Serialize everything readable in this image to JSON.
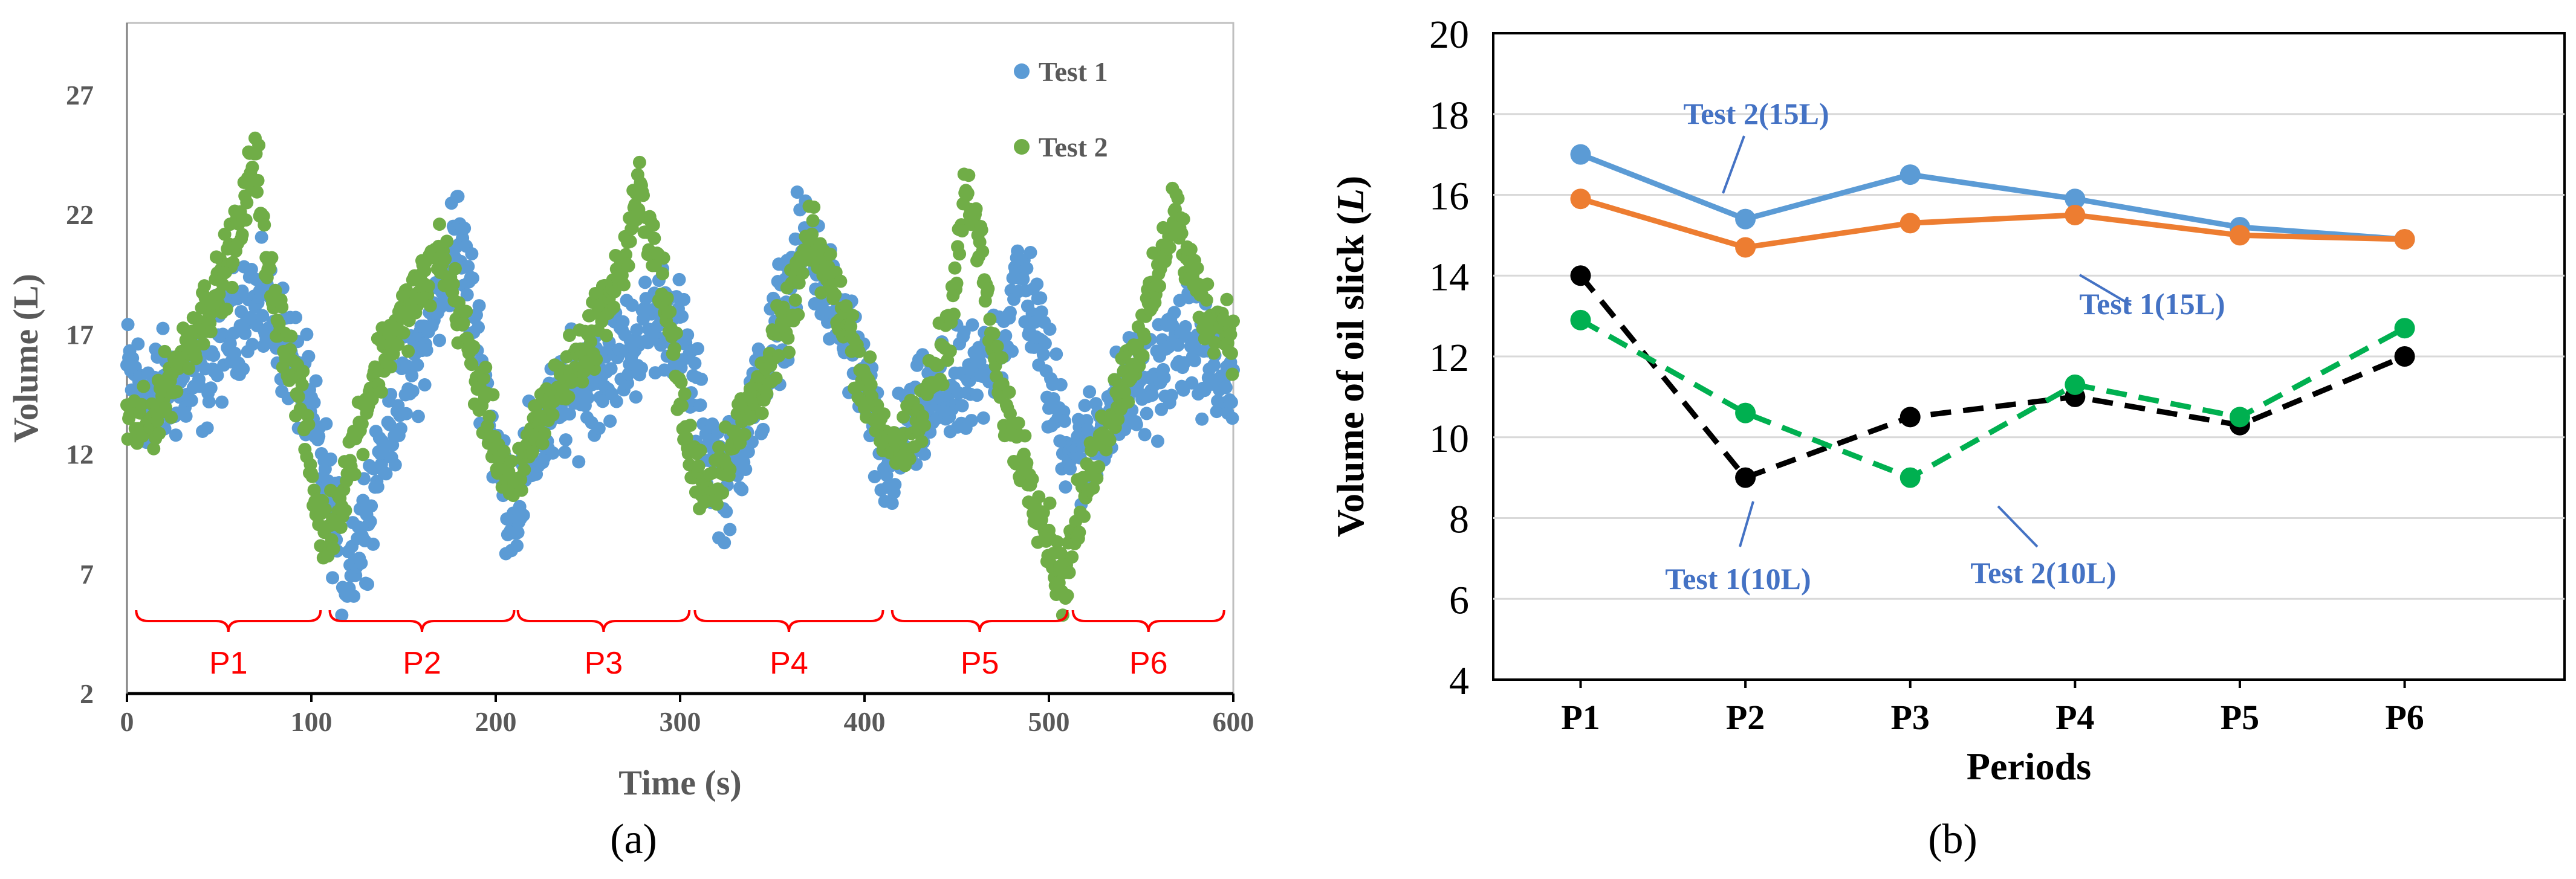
{
  "chart_data": [
    {
      "panel": "(a)",
      "type": "scatter",
      "title": "",
      "xlabel": "Time (s)",
      "ylabel": "Volume (L)",
      "xlim": [
        0,
        600
      ],
      "ylim": [
        2,
        30
      ],
      "xticks": [
        0,
        100,
        200,
        300,
        400,
        500,
        600
      ],
      "yticks": [
        2,
        7,
        12,
        17,
        22,
        27
      ],
      "legend_position": "top-right",
      "series": [
        {
          "name": "Test 1",
          "color": "#5b9bd5",
          "keypoints": [
            [
              0,
              15.5
            ],
            [
              12,
              14.5
            ],
            [
              25,
              14.8
            ],
            [
              40,
              15
            ],
            [
              55,
              17
            ],
            [
              65,
              18.5
            ],
            [
              80,
              17.5
            ],
            [
              95,
              15
            ],
            [
              108,
              11
            ],
            [
              118,
              7
            ],
            [
              128,
              9
            ],
            [
              140,
              13
            ],
            [
              152,
              15
            ],
            [
              162,
              17
            ],
            [
              172,
              19
            ],
            [
              178,
              21.5
            ],
            [
              188,
              18
            ],
            [
              200,
              12
            ],
            [
              210,
              9.5
            ],
            [
              222,
              12.5
            ],
            [
              235,
              14
            ],
            [
              250,
              15
            ],
            [
              265,
              16
            ],
            [
              280,
              17
            ],
            [
              292,
              18
            ],
            [
              300,
              17
            ],
            [
              312,
              13
            ],
            [
              325,
              10.5
            ],
            [
              335,
              13
            ],
            [
              345,
              15
            ],
            [
              355,
              18
            ],
            [
              368,
              21
            ],
            [
              378,
              19
            ],
            [
              390,
              17
            ],
            [
              400,
              15
            ],
            [
              410,
              11
            ],
            [
              422,
              12.5
            ],
            [
              435,
              14
            ],
            [
              450,
              14.5
            ],
            [
              462,
              15
            ],
            [
              475,
              17
            ],
            [
              485,
              19.5
            ],
            [
              492,
              18
            ],
            [
              500,
              15
            ],
            [
              508,
              13
            ],
            [
              518,
              12
            ],
            [
              530,
              13.5
            ],
            [
              545,
              14.5
            ],
            [
              560,
              15.5
            ],
            [
              575,
              17
            ],
            [
              585,
              16
            ],
            [
              595,
              15
            ],
            [
              600,
              14.5
            ]
          ]
        },
        {
          "name": "Test 2",
          "color": "#70ad47",
          "keypoints": [
            [
              0,
              13.5
            ],
            [
              10,
              13
            ],
            [
              20,
              14.5
            ],
            [
              35,
              17
            ],
            [
              50,
              19
            ],
            [
              62,
              21.5
            ],
            [
              70,
              25
            ],
            [
              75,
              20
            ],
            [
              85,
              17
            ],
            [
              95,
              14
            ],
            [
              102,
              10
            ],
            [
              108,
              8.5
            ],
            [
              115,
              10
            ],
            [
              125,
              13
            ],
            [
              135,
              15.5
            ],
            [
              148,
              17.5
            ],
            [
              160,
              19
            ],
            [
              170,
              20.5
            ],
            [
              180,
              18
            ],
            [
              190,
              15
            ],
            [
              200,
              12.5
            ],
            [
              210,
              10
            ],
            [
              220,
              13
            ],
            [
              232,
              14.5
            ],
            [
              245,
              16
            ],
            [
              258,
              18
            ],
            [
              270,
              20
            ],
            [
              278,
              23
            ],
            [
              285,
              21
            ],
            [
              295,
              17
            ],
            [
              305,
              12
            ],
            [
              315,
              10.5
            ],
            [
              325,
              12
            ],
            [
              335,
              13.5
            ],
            [
              350,
              16
            ],
            [
              360,
              18
            ],
            [
              370,
              21
            ],
            [
              380,
              19.5
            ],
            [
              390,
              17.5
            ],
            [
              400,
              15
            ],
            [
              410,
              13
            ],
            [
              420,
              12
            ],
            [
              430,
              13.5
            ],
            [
              445,
              17
            ],
            [
              455,
              23
            ],
            [
              462,
              21
            ],
            [
              472,
              15
            ],
            [
              480,
              13
            ],
            [
              490,
              11
            ],
            [
              500,
              8.5
            ],
            [
              507,
              6.5
            ],
            [
              515,
              9
            ],
            [
              525,
              12
            ],
            [
              540,
              15
            ],
            [
              550,
              17
            ],
            [
              560,
              19.5
            ],
            [
              568,
              22.5
            ],
            [
              575,
              20
            ],
            [
              585,
              18
            ],
            [
              595,
              17.5
            ],
            [
              600,
              17
            ]
          ]
        }
      ],
      "annotations": [
        "P1",
        "P2",
        "P3",
        "P4",
        "P5",
        "P6"
      ],
      "annotation_ranges": [
        [
          5,
          105
        ],
        [
          110,
          210
        ],
        [
          212,
          305
        ],
        [
          308,
          410
        ],
        [
          415,
          510
        ],
        [
          513,
          595
        ]
      ],
      "annotation_color": "#ff0000"
    },
    {
      "panel": "(b)",
      "type": "line",
      "title": "",
      "xlabel": "Periods",
      "ylabel": "Volume of oil slick (L)",
      "ylabel_prefix": "Volume of oil slick (",
      "ylabel_var": "L",
      "ylabel_suffix": ")",
      "categories": [
        "P1",
        "P2",
        "P3",
        "P4",
        "P5",
        "P6"
      ],
      "ylim": [
        4,
        20
      ],
      "yticks": [
        4,
        6,
        8,
        10,
        12,
        14,
        16,
        18,
        20
      ],
      "grid": true,
      "series": [
        {
          "name": "Test 2(15L)",
          "values": [
            17,
            15.4,
            16.5,
            15.9,
            15.2,
            14.9
          ],
          "color": "#5b9bd5",
          "dash": "solid"
        },
        {
          "name": "Test 1(15L)",
          "values": [
            15.9,
            14.7,
            15.3,
            15.5,
            15.0,
            14.9
          ],
          "color": "#ed7d31",
          "dash": "solid"
        },
        {
          "name": "Test 1(10L)",
          "values": [
            14,
            9,
            10.5,
            11,
            10.3,
            12
          ],
          "color": "#000000",
          "dash": "dashed"
        },
        {
          "name": "Test 2(10L)",
          "values": [
            12.9,
            10.6,
            9,
            11.3,
            10.5,
            12.7
          ],
          "color": "#00b050",
          "dash": "dashed"
        }
      ],
      "label_color": "#4472c4"
    }
  ]
}
